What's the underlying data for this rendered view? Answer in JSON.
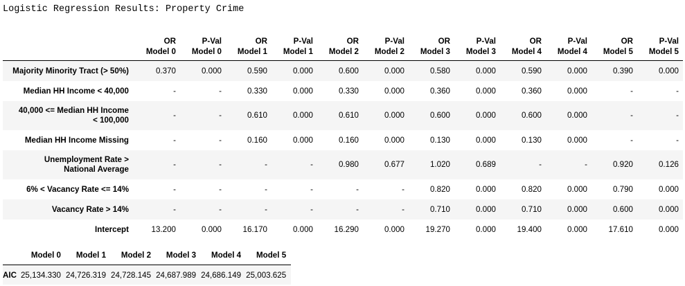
{
  "title": "Logistic Regression Results: Property Crime",
  "main_table": {
    "headers": [
      [
        "OR",
        "Model 0"
      ],
      [
        "P-Val",
        "Model 0"
      ],
      [
        "OR",
        "Model 1"
      ],
      [
        "P-Val",
        "Model 1"
      ],
      [
        "OR",
        "Model 2"
      ],
      [
        "P-Val",
        "Model 2"
      ],
      [
        "OR",
        "Model 3"
      ],
      [
        "P-Val",
        "Model 3"
      ],
      [
        "OR",
        "Model 4"
      ],
      [
        "P-Val",
        "Model 4"
      ],
      [
        "OR",
        "Model 5"
      ],
      [
        "P-Val",
        "Model 5"
      ]
    ],
    "rows": [
      {
        "label": [
          "Majority Minority Tract (> 50%)"
        ],
        "cells": [
          "0.370",
          "0.000",
          "0.590",
          "0.000",
          "0.600",
          "0.000",
          "0.580",
          "0.000",
          "0.590",
          "0.000",
          "0.390",
          "0.000"
        ]
      },
      {
        "label": [
          "Median HH Income < 40,000"
        ],
        "cells": [
          "-",
          "-",
          "0.330",
          "0.000",
          "0.330",
          "0.000",
          "0.360",
          "0.000",
          "0.360",
          "0.000",
          "-",
          "-"
        ]
      },
      {
        "label": [
          "40,000 <= Median HH Income",
          "< 100,000"
        ],
        "cells": [
          "-",
          "-",
          "0.610",
          "0.000",
          "0.610",
          "0.000",
          "0.600",
          "0.000",
          "0.600",
          "0.000",
          "-",
          "-"
        ]
      },
      {
        "label": [
          "Median HH Income Missing"
        ],
        "cells": [
          "-",
          "-",
          "0.160",
          "0.000",
          "0.160",
          "0.000",
          "0.130",
          "0.000",
          "0.130",
          "0.000",
          "-",
          "-"
        ]
      },
      {
        "label": [
          "Unemployment Rate >",
          "National Average"
        ],
        "cells": [
          "-",
          "-",
          "-",
          "-",
          "0.980",
          "0.677",
          "1.020",
          "0.689",
          "-",
          "-",
          "0.920",
          "0.126"
        ]
      },
      {
        "label": [
          "6% < Vacancy Rate <= 14%"
        ],
        "cells": [
          "-",
          "-",
          "-",
          "-",
          "-",
          "-",
          "0.820",
          "0.000",
          "0.820",
          "0.000",
          "0.790",
          "0.000"
        ]
      },
      {
        "label": [
          "Vacancy Rate > 14%"
        ],
        "cells": [
          "-",
          "-",
          "-",
          "-",
          "-",
          "-",
          "0.710",
          "0.000",
          "0.710",
          "0.000",
          "0.600",
          "0.000"
        ]
      },
      {
        "label": [
          "Intercept"
        ],
        "cells": [
          "13.200",
          "0.000",
          "16.170",
          "0.000",
          "16.290",
          "0.000",
          "19.270",
          "0.000",
          "19.400",
          "0.000",
          "17.610",
          "0.000"
        ]
      }
    ]
  },
  "aic_table": {
    "headers": [
      "Model 0",
      "Model 1",
      "Model 2",
      "Model 3",
      "Model 4",
      "Model 5"
    ],
    "row_label": "AIC",
    "values": [
      "25,134.330",
      "24,726.319",
      "24,728.145",
      "24,687.989",
      "24,686.149",
      "25,003.625"
    ]
  }
}
